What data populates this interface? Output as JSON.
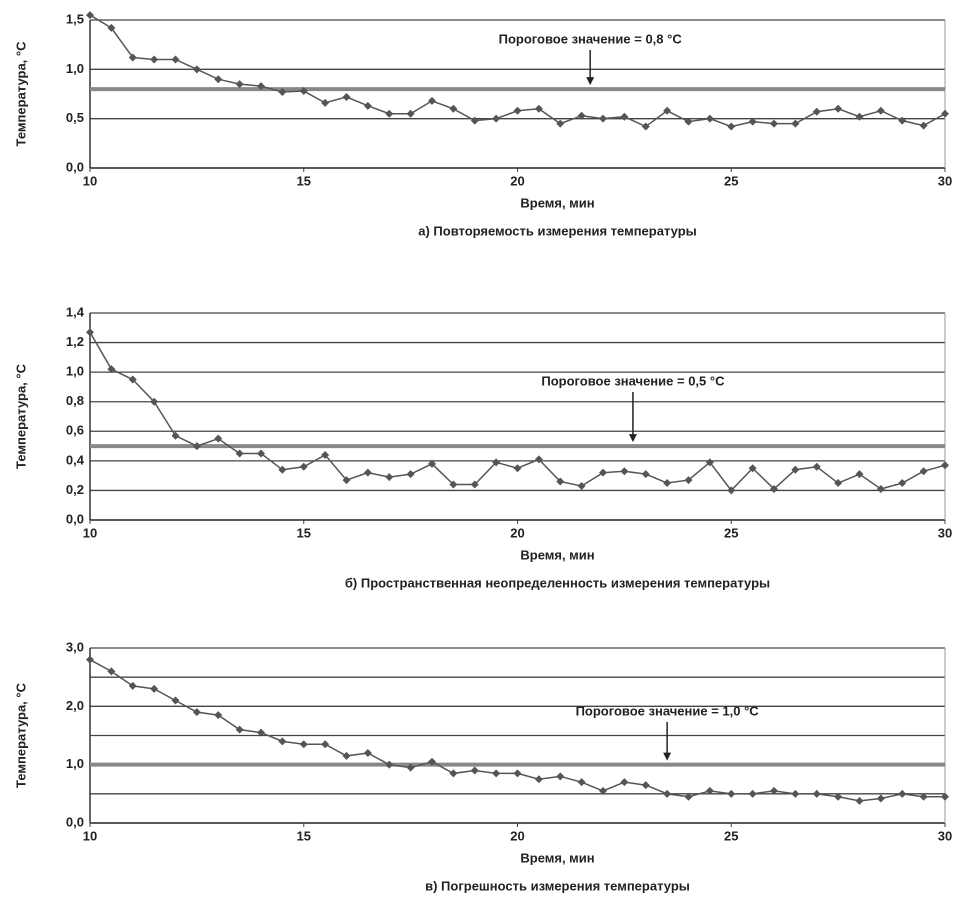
{
  "chart_data": [
    {
      "type": "line",
      "title": "а) Повторяемость измерения температуры",
      "xlabel": "Время, мин",
      "ylabel": "Температура, °С",
      "x": [
        10,
        10.5,
        11,
        11.5,
        12,
        12.5,
        13,
        13.5,
        14,
        14.5,
        15,
        15.5,
        16,
        16.5,
        17,
        17.5,
        18,
        18.5,
        19,
        19.5,
        20,
        20.5,
        21,
        21.5,
        22,
        22.5,
        23,
        23.5,
        24,
        24.5,
        25,
        25.5,
        26,
        26.5,
        27,
        27.5,
        28,
        28.5,
        29,
        29.5,
        30
      ],
      "series": [
        {
          "color": "#555555",
          "values": [
            1.55,
            1.42,
            1.12,
            1.1,
            1.1,
            1.0,
            0.9,
            0.85,
            0.83,
            0.77,
            0.78,
            0.66,
            0.72,
            0.63,
            0.55,
            0.55,
            0.68,
            0.6,
            0.48,
            0.5,
            0.58,
            0.6,
            0.45,
            0.53,
            0.5,
            0.52,
            0.42,
            0.58,
            0.47,
            0.5,
            0.42,
            0.47,
            0.45,
            0.45,
            0.57,
            0.6,
            0.52,
            0.58,
            0.48,
            0.43,
            0.55
          ]
        }
      ],
      "threshold": {
        "value": 0.8,
        "label": "Пороговое значение = 0,8 °С"
      },
      "xlim": [
        10,
        30
      ],
      "xticks": [
        10,
        15,
        20,
        25,
        30
      ],
      "ylim": [
        0,
        1.5
      ],
      "yticks": [
        {
          "value": 0,
          "label": "0,0"
        },
        {
          "value": 0.5,
          "label": "0,5"
        },
        {
          "value": 1.0,
          "label": "1,0"
        },
        {
          "value": 1.5,
          "label": "1,5"
        }
      ],
      "grid": true
    },
    {
      "type": "line",
      "title": "б) Пространственная неопределенность измерения температуры",
      "xlabel": "Время, мин",
      "ylabel": "Температура, °С",
      "x": [
        10,
        10.5,
        11,
        11.5,
        12,
        12.5,
        13,
        13.5,
        14,
        14.5,
        15,
        15.5,
        16,
        16.5,
        17,
        17.5,
        18,
        18.5,
        19,
        19.5,
        20,
        20.5,
        21,
        21.5,
        22,
        22.5,
        23,
        23.5,
        24,
        24.5,
        25,
        25.5,
        26,
        26.5,
        27,
        27.5,
        28,
        28.5,
        29,
        29.5,
        30
      ],
      "series": [
        {
          "color": "#555555",
          "values": [
            1.27,
            1.02,
            0.95,
            0.8,
            0.57,
            0.5,
            0.55,
            0.45,
            0.45,
            0.34,
            0.36,
            0.44,
            0.27,
            0.32,
            0.29,
            0.31,
            0.38,
            0.24,
            0.24,
            0.39,
            0.35,
            0.41,
            0.26,
            0.23,
            0.32,
            0.33,
            0.31,
            0.25,
            0.27,
            0.39,
            0.2,
            0.35,
            0.21,
            0.34,
            0.36,
            0.25,
            0.31,
            0.21,
            0.25,
            0.33,
            0.37
          ]
        }
      ],
      "threshold": {
        "value": 0.5,
        "label": "Пороговое значение = 0,5 °С"
      },
      "xlim": [
        10,
        30
      ],
      "xticks": [
        10,
        15,
        20,
        25,
        30
      ],
      "ylim": [
        0,
        1.4
      ],
      "yticks": [
        {
          "value": 0,
          "label": "0,0"
        },
        {
          "value": 0.2,
          "label": "0,2"
        },
        {
          "value": 0.4,
          "label": "0,4"
        },
        {
          "value": 0.6,
          "label": "0,6"
        },
        {
          "value": 0.8,
          "label": "0,8"
        },
        {
          "value": 1.0,
          "label": "1,0"
        },
        {
          "value": 1.2,
          "label": "1,2"
        },
        {
          "value": 1.4,
          "label": "1,4"
        }
      ],
      "grid": true
    },
    {
      "type": "line",
      "title": "в) Погрешность измерения температуры",
      "xlabel": "Время, мин",
      "ylabel": "Температура, °С",
      "x": [
        10,
        10.5,
        11,
        11.5,
        12,
        12.5,
        13,
        13.5,
        14,
        14.5,
        15,
        15.5,
        16,
        16.5,
        17,
        17.5,
        18,
        18.5,
        19,
        19.5,
        20,
        20.5,
        21,
        21.5,
        22,
        22.5,
        23,
        23.5,
        24,
        24.5,
        25,
        25.5,
        26,
        26.5,
        27,
        27.5,
        28,
        28.5,
        29,
        29.5,
        30
      ],
      "series": [
        {
          "color": "#555555",
          "values": [
            2.8,
            2.6,
            2.35,
            2.3,
            2.1,
            1.9,
            1.85,
            1.6,
            1.55,
            1.4,
            1.35,
            1.35,
            1.15,
            1.2,
            1.0,
            0.95,
            1.05,
            0.85,
            0.9,
            0.85,
            0.85,
            0.75,
            0.8,
            0.7,
            0.55,
            0.7,
            0.65,
            0.5,
            0.45,
            0.55,
            0.5,
            0.5,
            0.55,
            0.5,
            0.5,
            0.45,
            0.38,
            0.42,
            0.5,
            0.45,
            0.45
          ]
        }
      ],
      "threshold": {
        "value": 1.0,
        "label": "Пороговое значение = 1,0 °С"
      },
      "xlim": [
        10,
        30
      ],
      "xticks": [
        10,
        15,
        20,
        25,
        30
      ],
      "ylim": [
        0,
        3
      ],
      "yticks": [
        {
          "value": 0,
          "label": "0,0"
        },
        {
          "value": 1,
          "label": "1,0"
        },
        {
          "value": 2,
          "label": "2,0"
        },
        {
          "value": 3,
          "label": "3,0"
        }
      ],
      "minor_yticks": [
        0.5,
        1.5,
        2.5
      ],
      "grid": true
    }
  ]
}
